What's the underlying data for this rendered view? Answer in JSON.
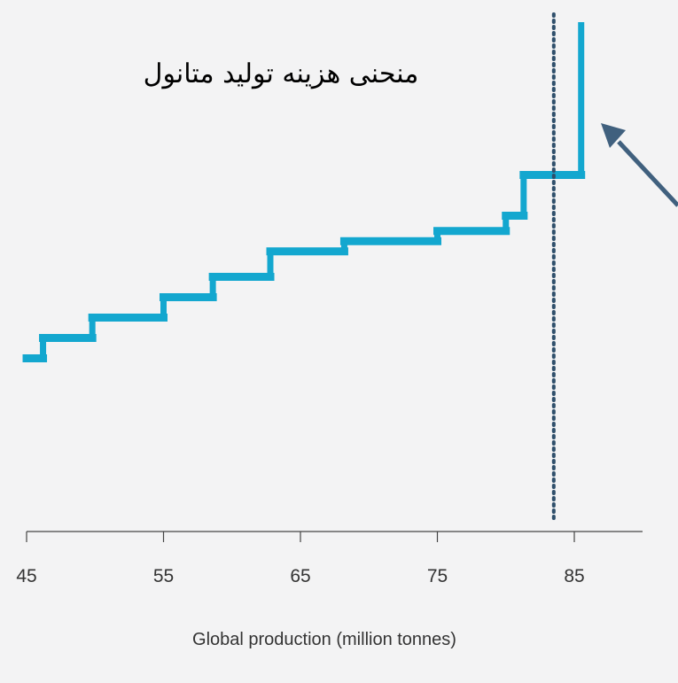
{
  "chart_data": {
    "type": "line",
    "step": true,
    "title": "منحنی هزینه تولید متانول",
    "xlabel": "Global production (million tonnes)",
    "ylabel": "",
    "xlim": [
      45,
      90
    ],
    "ylim": [
      0,
      100
    ],
    "xticks": [
      45,
      55,
      65,
      75,
      85
    ],
    "grid": false,
    "line_color": "#13a7cf",
    "axis_color": "#444444",
    "marker_line_color": "#2f4f6b",
    "arrow_color": "#40607e",
    "steps": [
      {
        "x0": 45.0,
        "x1": 46.2,
        "y": 34
      },
      {
        "x0": 46.2,
        "x1": 49.8,
        "y": 38
      },
      {
        "x0": 49.8,
        "x1": 55.0,
        "y": 42
      },
      {
        "x0": 55.0,
        "x1": 58.6,
        "y": 46
      },
      {
        "x0": 58.6,
        "x1": 62.8,
        "y": 50
      },
      {
        "x0": 62.8,
        "x1": 68.2,
        "y": 55
      },
      {
        "x0": 68.2,
        "x1": 75.0,
        "y": 57
      },
      {
        "x0": 75.0,
        "x1": 80.0,
        "y": 59
      },
      {
        "x0": 80.0,
        "x1": 81.3,
        "y": 62
      },
      {
        "x0": 81.3,
        "x1": 85.5,
        "y": 70
      },
      {
        "x0": 85.5,
        "x1": 85.5,
        "y": 100
      }
    ],
    "demand_line_x": 83.5
  }
}
